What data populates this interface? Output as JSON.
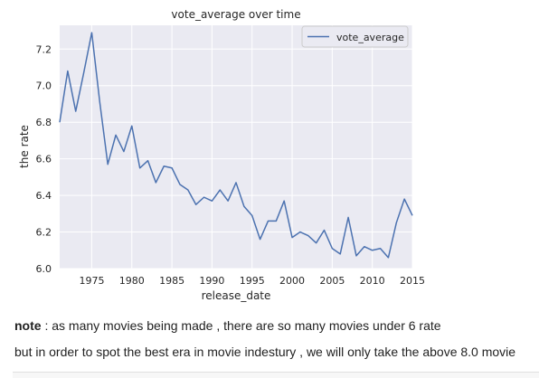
{
  "chart_data": {
    "type": "line",
    "title": "vote_average over time",
    "xlabel": "release_date",
    "ylabel": "the rate",
    "xlim": [
      1971,
      2015
    ],
    "ylim": [
      6.0,
      7.33
    ],
    "x_ticks": [
      1975,
      1980,
      1985,
      1990,
      1995,
      2000,
      2005,
      2010,
      2015
    ],
    "y_ticks": [
      6.0,
      6.2,
      6.4,
      6.6,
      6.8,
      7.0,
      7.2
    ],
    "y_tick_labels": [
      "6.0",
      "6.2",
      "6.4",
      "6.6",
      "6.8",
      "7.0",
      "7.2"
    ],
    "grid": true,
    "legend_position": "top-right",
    "background": "#eaeaf2",
    "series": [
      {
        "name": "vote_average",
        "color": "#4c72b0",
        "x": [
          1971,
          1972,
          1973,
          1974,
          1975,
          1976,
          1977,
          1978,
          1979,
          1980,
          1981,
          1982,
          1983,
          1984,
          1985,
          1986,
          1987,
          1988,
          1989,
          1990,
          1991,
          1992,
          1993,
          1994,
          1995,
          1996,
          1997,
          1998,
          1999,
          2000,
          2001,
          2002,
          2003,
          2004,
          2005,
          2006,
          2007,
          2008,
          2009,
          2010,
          2011,
          2012,
          2013,
          2014,
          2015
        ],
        "values": [
          6.8,
          7.08,
          6.86,
          7.07,
          7.29,
          6.91,
          6.57,
          6.73,
          6.64,
          6.78,
          6.55,
          6.59,
          6.47,
          6.56,
          6.55,
          6.46,
          6.43,
          6.35,
          6.39,
          6.37,
          6.43,
          6.37,
          6.47,
          6.34,
          6.29,
          6.16,
          6.26,
          6.26,
          6.37,
          6.17,
          6.2,
          6.18,
          6.14,
          6.21,
          6.11,
          6.08,
          6.28,
          6.07,
          6.12,
          6.1,
          6.11,
          6.06,
          6.25,
          6.38,
          6.29
        ]
      }
    ]
  },
  "notes": {
    "line1_bold": "note",
    "line1_rest": " : as many movies being made , there are so many movies under 6 rate",
    "line2": "but in order to spot the best era in movie indestury , we will only take the above 8.0 movie"
  }
}
